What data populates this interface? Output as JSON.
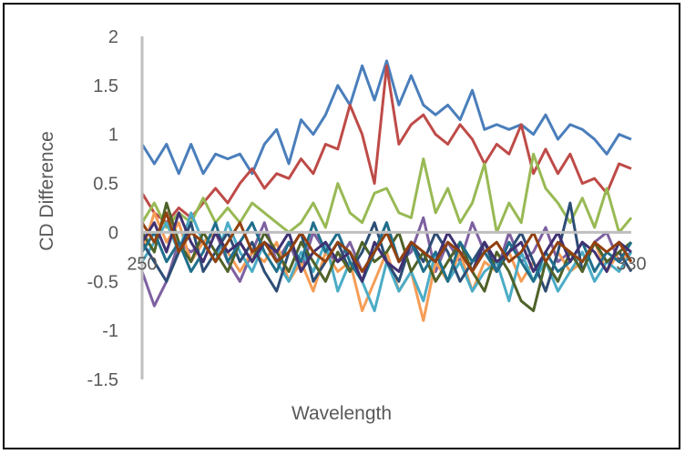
{
  "chart_data": {
    "type": "line",
    "title": "",
    "xlabel": "Wavelength",
    "ylabel": "CD Difference",
    "xlim": [
      250,
      330
    ],
    "ylim": [
      -1.5,
      2
    ],
    "y_ticks": [
      {
        "value": 2,
        "label": "2"
      },
      {
        "value": 1.5,
        "label": "1.5"
      },
      {
        "value": 1,
        "label": "1"
      },
      {
        "value": 0.5,
        "label": "0.5"
      },
      {
        "value": 0,
        "label": "0"
      },
      {
        "value": -0.5,
        "label": "-0.5"
      },
      {
        "value": -1,
        "label": "-1"
      },
      {
        "value": -1.5,
        "label": "-1.5"
      }
    ],
    "x_ticks": [
      {
        "value": 250,
        "label": "250"
      },
      {
        "value": 330,
        "label": "330"
      }
    ],
    "grid": false,
    "legend": "none",
    "x": [
      250,
      252,
      254,
      256,
      258,
      260,
      262,
      264,
      266,
      268,
      270,
      272,
      274,
      276,
      278,
      280,
      282,
      284,
      286,
      288,
      290,
      292,
      294,
      296,
      298,
      300,
      302,
      304,
      306,
      308,
      310,
      312,
      314,
      316,
      318,
      320,
      322,
      324,
      326,
      328,
      330
    ],
    "series": [
      {
        "color": "#4a7ebb",
        "values": [
          0.9,
          0.7,
          0.9,
          0.6,
          0.9,
          0.6,
          0.8,
          0.75,
          0.8,
          0.6,
          0.9,
          1.05,
          0.7,
          1.15,
          1.0,
          1.2,
          1.5,
          1.3,
          1.7,
          1.35,
          1.75,
          1.3,
          1.6,
          1.3,
          1.2,
          1.3,
          1.15,
          1.45,
          1.05,
          1.1,
          1.05,
          1.1,
          1.0,
          1.2,
          0.95,
          1.1,
          1.05,
          0.95,
          0.8,
          1.0,
          0.95
        ]
      },
      {
        "color": "#be4b48",
        "values": [
          0.4,
          0.2,
          0.1,
          0.25,
          0.15,
          0.3,
          0.45,
          0.3,
          0.5,
          0.65,
          0.45,
          0.6,
          0.55,
          0.75,
          0.6,
          0.9,
          0.85,
          1.3,
          1.0,
          0.5,
          1.7,
          0.9,
          1.1,
          1.2,
          1.0,
          0.9,
          1.1,
          0.95,
          0.7,
          0.9,
          0.8,
          1.1,
          0.6,
          0.85,
          0.6,
          0.8,
          0.5,
          0.55,
          0.4,
          0.7,
          0.65
        ]
      },
      {
        "color": "#98b954",
        "values": [
          0.1,
          0.3,
          0.05,
          0.2,
          0.1,
          0.35,
          0.1,
          0.25,
          0.1,
          0.3,
          0.2,
          0.1,
          0.0,
          0.1,
          0.3,
          0.05,
          0.5,
          0.2,
          0.1,
          0.4,
          0.45,
          0.2,
          0.15,
          0.75,
          0.2,
          0.45,
          0.1,
          0.3,
          0.7,
          0.0,
          0.3,
          0.1,
          0.8,
          0.45,
          0.3,
          0.1,
          0.35,
          0.05,
          0.45,
          0.0,
          0.15
        ]
      },
      {
        "color": "#7d60a0",
        "values": [
          -0.4,
          -0.75,
          -0.5,
          -0.1,
          -0.2,
          -0.1,
          0.0,
          -0.3,
          -0.5,
          -0.2,
          0.1,
          -0.3,
          -0.1,
          -0.4,
          0.0,
          -0.2,
          -0.3,
          -0.1,
          -0.4,
          -0.2,
          0.1,
          -0.3,
          -0.2,
          0.15,
          -0.4,
          -0.1,
          -0.3,
          0.1,
          -0.2,
          -0.4,
          0.0,
          -0.3,
          -0.2,
          0.05,
          -0.3,
          -0.2,
          -0.4,
          -0.1,
          0.0,
          -0.3,
          -0.2
        ]
      },
      {
        "color": "#f59d56",
        "values": [
          -0.2,
          0.2,
          -0.1,
          0.1,
          -0.3,
          -0.1,
          0.0,
          -0.2,
          -0.4,
          -0.2,
          -0.3,
          -0.1,
          -0.5,
          -0.3,
          -0.6,
          -0.2,
          -0.4,
          -0.3,
          -0.8,
          -0.5,
          -0.2,
          -0.6,
          -0.4,
          -0.9,
          -0.3,
          -0.5,
          -0.2,
          -0.6,
          -0.3,
          -0.4,
          -0.2,
          -0.5,
          -0.3,
          -0.6,
          -0.2,
          -0.4,
          -0.3,
          -0.1,
          -0.4,
          -0.2,
          -0.3
        ]
      },
      {
        "color": "#4bacc6",
        "values": [
          -0.3,
          -0.1,
          0.1,
          -0.2,
          0.2,
          -0.1,
          -0.3,
          0.1,
          -0.2,
          -0.4,
          -0.1,
          -0.3,
          -0.5,
          -0.2,
          -0.4,
          -0.1,
          -0.6,
          -0.3,
          -0.5,
          -0.8,
          -0.3,
          -0.6,
          -0.4,
          -0.7,
          -0.2,
          -0.5,
          -0.3,
          -0.6,
          -0.4,
          -0.3,
          -0.7,
          -0.2,
          -0.5,
          -0.3,
          -0.6,
          -0.4,
          -0.2,
          -0.5,
          -0.3,
          -0.4,
          -0.2
        ]
      },
      {
        "color": "#2c4d75",
        "values": [
          -0.1,
          -0.3,
          -0.5,
          -0.2,
          0.1,
          -0.4,
          -0.2,
          0.0,
          -0.3,
          -0.1,
          -0.4,
          -0.6,
          -0.2,
          0.0,
          -0.5,
          -0.3,
          -0.1,
          -0.4,
          -0.2,
          0.1,
          -0.3,
          -0.5,
          -0.1,
          -0.3,
          0.0,
          -0.2,
          -0.5,
          -0.3,
          -0.1,
          -0.4,
          -0.2,
          0.0,
          -0.3,
          -0.6,
          -0.2,
          0.3,
          -0.4,
          -0.1,
          -0.3,
          -0.2,
          -0.4
        ]
      },
      {
        "color": "#4f6228",
        "values": [
          0.0,
          -0.2,
          0.3,
          -0.1,
          -0.3,
          0.0,
          -0.2,
          -0.4,
          -0.1,
          -0.3,
          0.0,
          -0.2,
          -0.4,
          -0.1,
          -0.3,
          -0.5,
          -0.2,
          -0.4,
          -0.1,
          -0.3,
          -0.2,
          0.0,
          -0.4,
          -0.2,
          -0.5,
          -0.3,
          -0.1,
          -0.4,
          -0.6,
          -0.2,
          -0.4,
          -0.7,
          -0.8,
          -0.3,
          -0.5,
          -0.2,
          -0.4,
          -0.1,
          -0.3,
          -0.2,
          -0.1
        ]
      },
      {
        "color": "#1f6f8b",
        "values": [
          -0.2,
          0.0,
          -0.3,
          -0.1,
          -0.4,
          -0.2,
          0.1,
          -0.3,
          -0.1,
          0.1,
          -0.2,
          -0.4,
          -0.1,
          -0.3,
          0.1,
          -0.2,
          0.0,
          -0.3,
          -0.5,
          -0.2,
          0.1,
          -0.3,
          -0.1,
          -0.4,
          -0.2,
          -0.5,
          -0.1,
          -0.3,
          -0.2,
          -0.4,
          -0.1,
          -0.3,
          -0.5,
          -0.2,
          -0.4,
          -0.3,
          -0.1,
          -0.4,
          -0.2,
          -0.3,
          -0.1
        ]
      },
      {
        "color": "#3f3172",
        "values": [
          -0.1,
          0.1,
          -0.2,
          0.2,
          -0.1,
          -0.3,
          0.0,
          -0.2,
          -0.1,
          -0.3,
          -0.1,
          -0.2,
          0.0,
          -0.4,
          -0.2,
          -0.1,
          -0.3,
          -0.2,
          -0.5,
          -0.1,
          -0.3,
          -0.4,
          -0.1,
          -0.2,
          -0.3,
          0.0,
          -0.2,
          -0.4,
          -0.1,
          -0.3,
          -0.2,
          -0.1,
          -0.4,
          -0.2,
          0.0,
          -0.3,
          -0.1,
          -0.2,
          -0.4,
          -0.1,
          -0.2
        ]
      },
      {
        "color": "#92400e",
        "values": [
          0.1,
          -0.1,
          0.2,
          -0.2,
          0.0,
          -0.1,
          -0.3,
          -0.1,
          0.1,
          -0.2,
          -0.1,
          -0.3,
          -0.2,
          0.0,
          -0.2,
          -0.3,
          -0.1,
          -0.2,
          -0.4,
          -0.2,
          0.0,
          -0.3,
          -0.1,
          -0.2,
          -0.3,
          -0.1,
          -0.2,
          -0.4,
          -0.2,
          -0.1,
          -0.3,
          -0.2,
          0.0,
          -0.3,
          -0.1,
          -0.2,
          -0.3,
          -0.1,
          -0.2,
          -0.1,
          -0.3
        ]
      }
    ]
  }
}
